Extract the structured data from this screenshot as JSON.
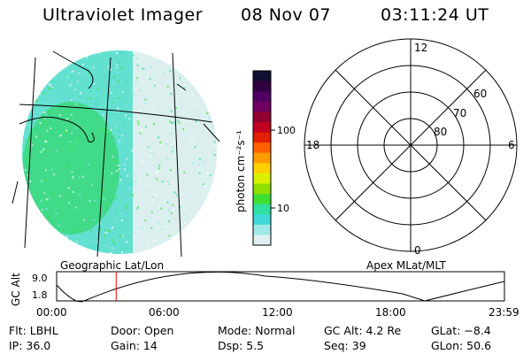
{
  "header": {
    "instrument": "Ultraviolet Imager",
    "date": "08 Nov 07",
    "time": "03:11:24 UT"
  },
  "image_panel": {
    "label": "Geographic Lat/Lon"
  },
  "colorbar": {
    "unit_label": "photon cm⁻²s⁻¹",
    "ticks": [
      "100",
      "10"
    ],
    "colors": [
      "#101030",
      "#300040",
      "#500060",
      "#700060",
      "#900030",
      "#c00020",
      "#e02000",
      "#ff6000",
      "#ff9c00",
      "#ffd000",
      "#d8f000",
      "#90e000",
      "#40e030",
      "#30e0a0",
      "#40d8d8",
      "#a0e8e8",
      "#e0f0f0"
    ]
  },
  "polar_panel": {
    "label": "Apex MLat/MLT",
    "mlt_labels": [
      "12",
      "18",
      "6",
      "0"
    ],
    "lat_labels": [
      "60",
      "70",
      "80"
    ]
  },
  "altitude_strip": {
    "axis_label": "GC Alt",
    "y_ticks": [
      "9.0",
      "1.8"
    ],
    "x_ticks": [
      "00:00",
      "06:00",
      "12:00",
      "18:00",
      "23:59"
    ],
    "marker_color": "#ff0000",
    "marker_time_h": 3.19
  },
  "info": {
    "filter": "Flt: LBHL",
    "ip": "IP: 36.0",
    "door": "Door: Open",
    "gain": "Gain: 14",
    "mode": "Mode: Normal",
    "dsp": "Dsp:     5.5",
    "gc_alt": "GC Alt: 4.2 Re",
    "seq": "Seq: 39",
    "glat": "GLat:  −8.4",
    "glon": "GLon:  50.6"
  }
}
